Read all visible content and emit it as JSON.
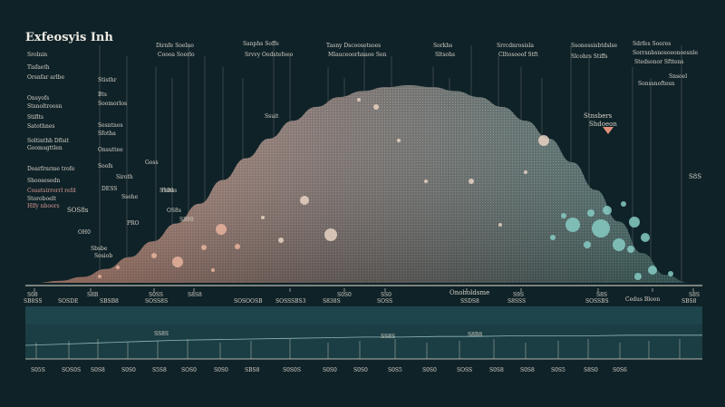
{
  "title": "Exfeosyis Inh",
  "left_panel": [
    {
      "text": "Srolnin",
      "pink": false
    },
    {
      "text": "Tisfaeth",
      "pink": false
    },
    {
      "text": "Orsnfar arlbe",
      "pink": false
    },
    {
      "text": "Onsyofs",
      "pink": false
    },
    {
      "text": "Stsnoltroosn",
      "pink": false
    },
    {
      "text": "Stiflts",
      "pink": false
    },
    {
      "text": "Satothnes",
      "pink": false
    },
    {
      "text": "Soltinthh Dflsit",
      "pink": false
    },
    {
      "text": "Goomsgttlen",
      "pink": false
    },
    {
      "text": "Doarfrnrme trofe",
      "pink": false
    },
    {
      "text": "Shoosesodn",
      "pink": false
    },
    {
      "text": "Coastsirrorrl refd",
      "pink": true
    },
    {
      "text": "Storoboelt",
      "pink": false
    },
    {
      "text": "Hlfy nboors",
      "pink": true
    }
  ],
  "top_labels": [
    {
      "text": "Dirnfe Soelno",
      "pink": false
    },
    {
      "text": "Coooa Soorlo",
      "pink": false
    },
    {
      "text": "Sanphs Soffe",
      "pink": false
    },
    {
      "text": "Srvvy Oedstefoeo",
      "pink": false
    },
    {
      "text": "Tasny Dscoosotsoes",
      "pink": false
    },
    {
      "text": "Mlauceoorhnaoe Sen",
      "pink": false
    },
    {
      "text": "Sorkhs",
      "pink": false
    },
    {
      "text": "Sltsohs",
      "pink": false
    },
    {
      "text": "Srrcdnrosisla",
      "pink": false
    },
    {
      "text": "Clltosooof Stft",
      "pink": false
    },
    {
      "text": "Ssonessisbtdslse",
      "pink": false
    },
    {
      "text": "Slcohrs Stiffs",
      "pink": false
    },
    {
      "text": "Sdrfes Soeres",
      "pink": false
    },
    {
      "text": "Sorrsnbsnosoeonoesnle",
      "pink": false
    },
    {
      "text": "Stedsonor Sfttens",
      "pink": false
    },
    {
      "text": "Sonssnoftesn",
      "pink": false
    },
    {
      "text": "Snsoel",
      "pink": false
    }
  ],
  "mid_labels": [
    "Stisthr",
    "Bts",
    "Soomorlos",
    "Sesntnos",
    "Sfotha",
    "Onsuttee",
    "Soofs",
    "Goss",
    "Ssuit",
    "Siroth",
    "Fsbss"
  ],
  "curve_labels": [
    "Stnsbers",
    "Shdoeon",
    "Ssehe",
    "SOS8s",
    "OS8s",
    "Sbsbe",
    "Sosiob",
    "PRO",
    "OH0",
    "S890",
    "S190",
    "DESS"
  ],
  "right_side_label": "S8S",
  "axis_top_ticks": [
    "S08",
    "S8B",
    "S0SS",
    "S8S8",
    "S0S0",
    "SS0",
    "S9S",
    "S8S",
    "S8S"
  ],
  "axis_bottom_labels": [
    "SB8SS",
    "SOSDE",
    "SBSB8",
    "SOSS8S",
    "SOSOOSB",
    "SOSSSBS3",
    "S838S",
    "SOSS",
    "SSDS8",
    "S8SSS",
    "SOSSBS",
    "SBS8"
  ],
  "center_axis_label": "Onoholdsme",
  "right_axis_label": "Cedus Bloon",
  "lower_chart_labels": [
    "SS8S",
    "SS8S",
    "S8B8"
  ],
  "bottom_axis": [
    "S05S",
    "SOS0S",
    "S0S8",
    "S0S0",
    "S5S8",
    "SOS0",
    "S0S0",
    "SBS8",
    "S0S0S",
    "S0S0",
    "S0S0",
    "S0S5",
    "S0S0",
    "SOSS",
    "S0S8",
    "S0S8",
    "S0S5",
    "S8S0",
    "S0S6"
  ],
  "colors": {
    "background": "#0f2228",
    "mound_top": "#6f6b6a",
    "mound_left": "#c08a78",
    "mound_right": "#3f6b6a",
    "teal": "#86cbc3",
    "peach": "#e8b39c",
    "text": "#d9d3c8",
    "pink": "#d99a91",
    "lower_panel": "#1b3d44"
  },
  "chart_data": {
    "type": "area",
    "series": [
      {
        "values": [
          0,
          1,
          3,
          7,
          13,
          21,
          30,
          40,
          52,
          63,
          73,
          82,
          89,
          94,
          97,
          99,
          100,
          99,
          97,
          94,
          89,
          82,
          73,
          61,
          47,
          31,
          15,
          4,
          0
        ]
      }
    ],
    "lower_series": [
      {
        "values": [
          20,
          22,
          24,
          26,
          28,
          29,
          30,
          31,
          32,
          33,
          33,
          34,
          34,
          35,
          35,
          35,
          36,
          36,
          36
        ]
      }
    ]
  }
}
